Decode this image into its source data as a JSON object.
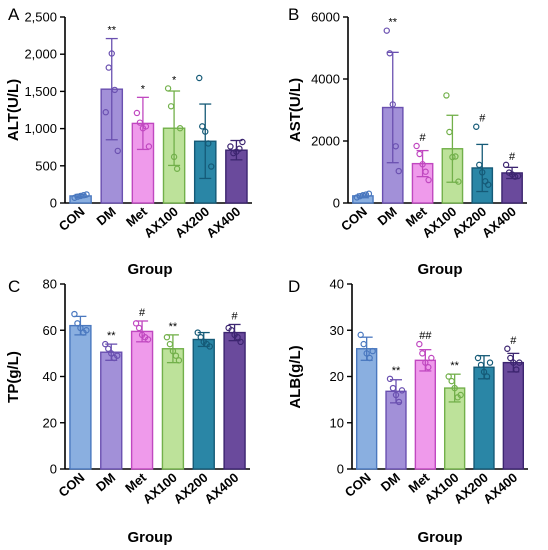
{
  "chart_data": [
    {
      "panel": "A",
      "type": "bar",
      "categories": [
        "CON",
        "DM",
        "Met",
        "AX100",
        "AX200",
        "AX400"
      ],
      "values": [
        95,
        1530,
        1070,
        1005,
        830,
        710
      ],
      "errors": [
        20,
        680,
        350,
        500,
        500,
        130
      ],
      "points": [
        [
          70,
          85,
          95,
          105,
          115
        ],
        [
          1220,
          1820,
          2010,
          1520,
          700
        ],
        [
          1210,
          1080,
          1005,
          1030,
          760
        ],
        [
          1540,
          1300,
          620,
          460,
          1005
        ],
        [
          1680,
          1030,
          960,
          800,
          490
        ],
        [
          760,
          670,
          690,
          730,
          820
        ]
      ],
      "significance": [
        "",
        "**",
        "*",
        "*",
        "",
        ""
      ],
      "ylabel": "ALT(U/L)",
      "xlabel": "Group",
      "ylim": [
        0,
        2500
      ],
      "yticks": [
        0,
        500,
        1000,
        1500,
        2000,
        2500
      ],
      "ytick_labels": [
        "0",
        "500",
        "1,000",
        "1,500",
        "2,000",
        "2,500"
      ]
    },
    {
      "panel": "B",
      "type": "bar",
      "categories": [
        "CON",
        "DM",
        "Met",
        "AX100",
        "AX200",
        "AX400"
      ],
      "values": [
        230,
        3080,
        1270,
        1750,
        1130,
        970
      ],
      "errors": [
        60,
        1780,
        420,
        1080,
        760,
        180
      ],
      "points": [
        [
          180,
          220,
          250,
          270,
          300
        ],
        [
          5560,
          4830,
          3180,
          1830,
          1030
        ],
        [
          1840,
          1580,
          1250,
          1010,
          740
        ],
        [
          3470,
          2290,
          1480,
          1500,
          690
        ],
        [
          2460,
          1230,
          990,
          700,
          590
        ],
        [
          1230,
          980,
          920,
          850,
          870
        ]
      ],
      "significance": [
        "",
        "**",
        "#",
        "",
        "#",
        "#"
      ],
      "ylabel": "AST(U/L)",
      "xlabel": "Group",
      "ylim": [
        0,
        6000
      ],
      "yticks": [
        0,
        2000,
        4000,
        6000
      ],
      "ytick_labels": [
        "0",
        "2000",
        "4000",
        "6000"
      ]
    },
    {
      "panel": "C",
      "type": "bar",
      "categories": [
        "CON",
        "DM",
        "Met",
        "AX100",
        "AX200",
        "AX400"
      ],
      "values": [
        62,
        50.5,
        59.5,
        52,
        56,
        59
      ],
      "errors": [
        4,
        3.5,
        4.5,
        6,
        3,
        3.5
      ],
      "points": [
        [
          67,
          63,
          61,
          59,
          60
        ],
        [
          54,
          52,
          50,
          48,
          49
        ],
        [
          63,
          61,
          58,
          57,
          56
        ],
        [
          57,
          54,
          51,
          49,
          47
        ],
        [
          59,
          57,
          55,
          54,
          53
        ],
        [
          61,
          60,
          58,
          57,
          55
        ]
      ],
      "significance": [
        "",
        "**",
        "#",
        "**",
        "",
        "#"
      ],
      "ylabel": "TP(g/L)",
      "xlabel": "Group",
      "ylim": [
        0,
        80
      ],
      "yticks": [
        0,
        20,
        40,
        60,
        80
      ],
      "ytick_labels": [
        "0",
        "20",
        "40",
        "60",
        "80"
      ]
    },
    {
      "panel": "D",
      "type": "bar",
      "categories": [
        "CON",
        "DM",
        "Met",
        "AX100",
        "AX200",
        "AX400"
      ],
      "values": [
        26,
        16.8,
        23.5,
        17.5,
        22,
        23
      ],
      "errors": [
        2.5,
        2.5,
        2.3,
        3,
        2.5,
        2
      ],
      "points": [
        [
          29,
          27,
          25,
          24,
          25.5
        ],
        [
          19.5,
          17.5,
          16,
          14.5,
          17
        ],
        [
          27,
          25,
          23,
          22,
          24
        ],
        [
          20,
          19,
          17.5,
          15.5,
          16
        ],
        [
          24,
          22.5,
          21,
          20,
          23
        ],
        [
          26,
          24,
          23,
          21.5,
          23
        ]
      ],
      "significance": [
        "",
        "**",
        "##",
        "**",
        "",
        "#"
      ],
      "ylabel": "ALB(g/L)",
      "xlabel": "Group",
      "ylim": [
        0,
        40
      ],
      "yticks": [
        0,
        10,
        20,
        30,
        40
      ],
      "ytick_labels": [
        "0",
        "10",
        "20",
        "30",
        "40"
      ]
    }
  ],
  "colors": {
    "fills": [
      "#8aafe0",
      "#a290d8",
      "#ef9aeb",
      "#bde29a",
      "#2a86a6",
      "#6a4a9c"
    ],
    "strokes": [
      "#4a78bf",
      "#6a50b0",
      "#c048c0",
      "#72b04a",
      "#155a77",
      "#3c2570"
    ]
  }
}
